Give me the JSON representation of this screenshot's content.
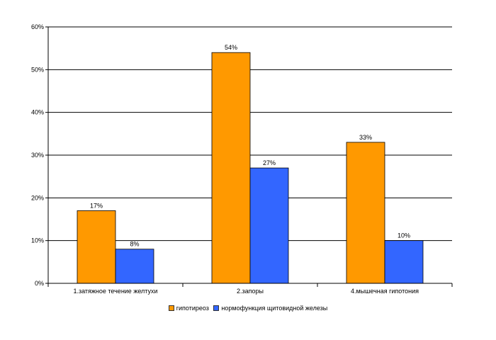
{
  "chart_data": {
    "type": "bar",
    "categories": [
      "1.затяжное течение желтухи",
      "2.запоры",
      "4.мышечная гипотония"
    ],
    "series": [
      {
        "name": "гипотиреоз",
        "values": [
          17,
          54,
          33
        ],
        "labels": [
          "17%",
          "54%",
          "33%"
        ],
        "color": "#ff9900"
      },
      {
        "name": "нормофункция щитовидной железы",
        "values": [
          8,
          27,
          10
        ],
        "labels": [
          "8%",
          "27%",
          "10%"
        ],
        "color": "#3366ff"
      }
    ],
    "y_ticks": [
      "0%",
      "10%",
      "20%",
      "30%",
      "40%",
      "50%",
      "60%"
    ],
    "ylim": [
      0,
      60
    ],
    "grid": true,
    "legend_position": "bottom"
  }
}
